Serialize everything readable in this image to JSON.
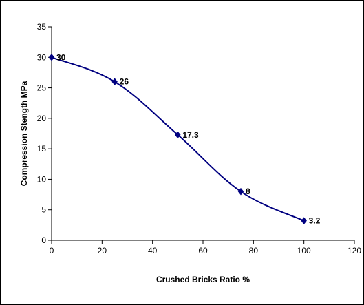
{
  "chart_data": {
    "type": "line",
    "title": "",
    "xlabel": "Crushed Bricks Ratio %",
    "ylabel": "Compression Stength MPa",
    "xlim": [
      0,
      120
    ],
    "ylim": [
      0,
      35
    ],
    "xticks": [
      "0",
      "20",
      "40",
      "60",
      "80",
      "100",
      "120"
    ],
    "yticks": [
      "0",
      "5",
      "10",
      "15",
      "20",
      "25",
      "30",
      "35"
    ],
    "grid": false,
    "legend": "none",
    "smoothed": true,
    "series": [
      {
        "x": [
          0,
          25,
          50,
          75,
          100
        ],
        "y": [
          30,
          26,
          17.3,
          8,
          3.2
        ],
        "labels": [
          "30",
          "26",
          "17.3",
          "8",
          "3.2"
        ],
        "color": "#000080",
        "marker": "diamond"
      }
    ]
  }
}
